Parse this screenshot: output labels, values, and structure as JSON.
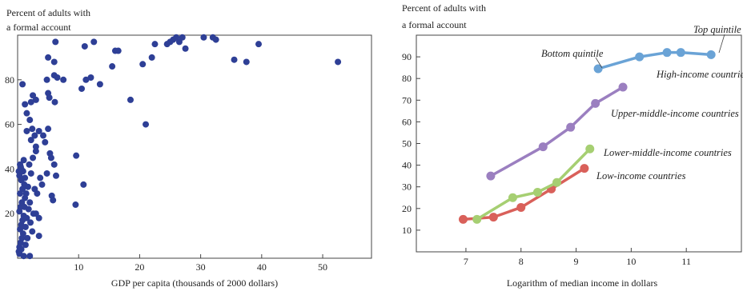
{
  "chart_data": [
    {
      "type": "scatter",
      "ylabel_line1": "Percent of adults with",
      "ylabel_line2": "a formal account",
      "xlabel": "GDP per capita (thousands of 2000 dollars)",
      "xlim": [
        0,
        58
      ],
      "ylim": [
        0,
        100
      ],
      "xticks": [
        10,
        20,
        30,
        40,
        50
      ],
      "yticks": [
        20,
        40,
        60,
        80
      ],
      "grid": false,
      "color": "#2e3f96",
      "points": [
        [
          0.2,
          3
        ],
        [
          0.3,
          5
        ],
        [
          0.5,
          7
        ],
        [
          0.7,
          9
        ],
        [
          0.9,
          11
        ],
        [
          0.4,
          13
        ],
        [
          0.6,
          15
        ],
        [
          0.8,
          17
        ],
        [
          1.0,
          19
        ],
        [
          0.3,
          21
        ],
        [
          0.5,
          23
        ],
        [
          0.7,
          25
        ],
        [
          1.2,
          27
        ],
        [
          0.4,
          29
        ],
        [
          0.8,
          31
        ],
        [
          1.1,
          33
        ],
        [
          0.6,
          35
        ],
        [
          0.3,
          37
        ],
        [
          0.9,
          39
        ],
        [
          0.5,
          41
        ],
        [
          1.3,
          14
        ],
        [
          1.5,
          18
        ],
        [
          1.8,
          22
        ],
        [
          2.0,
          25
        ],
        [
          1.4,
          29
        ],
        [
          1.7,
          32
        ],
        [
          1.2,
          36
        ],
        [
          2.2,
          38
        ],
        [
          1.9,
          42
        ],
        [
          1.0,
          44
        ],
        [
          0.2,
          39
        ],
        [
          0.4,
          42
        ],
        [
          0.6,
          40
        ],
        [
          1.6,
          9
        ],
        [
          2.4,
          12
        ],
        [
          2.1,
          16
        ],
        [
          2.6,
          20
        ],
        [
          1.1,
          23
        ],
        [
          3.5,
          18
        ],
        [
          3.0,
          20
        ],
        [
          2.8,
          31
        ],
        [
          3.2,
          29
        ],
        [
          4.0,
          33
        ],
        [
          3.7,
          36
        ],
        [
          2.5,
          45
        ],
        [
          3.0,
          48
        ],
        [
          2.2,
          53
        ],
        [
          2.8,
          55
        ],
        [
          2.4,
          58
        ],
        [
          3.5,
          57
        ],
        [
          3.0,
          50
        ],
        [
          4.5,
          52
        ],
        [
          4.2,
          55
        ],
        [
          5.0,
          58
        ],
        [
          5.3,
          47
        ],
        [
          6.0,
          42
        ],
        [
          5.5,
          45
        ],
        [
          4.8,
          38
        ],
        [
          5.8,
          26
        ],
        [
          5.6,
          28
        ],
        [
          6.3,
          37
        ],
        [
          2.0,
          62
        ],
        [
          1.5,
          65
        ],
        [
          1.2,
          69
        ],
        [
          2.2,
          70
        ],
        [
          3.0,
          71
        ],
        [
          2.5,
          73
        ],
        [
          5.0,
          74
        ],
        [
          5.2,
          72
        ],
        [
          6.1,
          70
        ],
        [
          1.5,
          57
        ],
        [
          0.8,
          78
        ],
        [
          4.8,
          80
        ],
        [
          6.0,
          82
        ],
        [
          6.5,
          81
        ],
        [
          7.5,
          80
        ],
        [
          5.0,
          90
        ],
        [
          6.0,
          88
        ],
        [
          6.2,
          97
        ],
        [
          3.5,
          10
        ],
        [
          2.0,
          1
        ],
        [
          9.6,
          46
        ],
        [
          9.5,
          24
        ],
        [
          10.8,
          33
        ],
        [
          10.5,
          76
        ],
        [
          11.2,
          80
        ],
        [
          12.0,
          81
        ],
        [
          13.5,
          78
        ],
        [
          11.0,
          95
        ],
        [
          12.5,
          97
        ],
        [
          15.5,
          86
        ],
        [
          16.0,
          93
        ],
        [
          16.5,
          93
        ],
        [
          18.5,
          71
        ],
        [
          20.5,
          87
        ],
        [
          22.0,
          90
        ],
        [
          22.5,
          96
        ],
        [
          21.0,
          60
        ],
        [
          24.5,
          96
        ],
        [
          25.5,
          98
        ],
        [
          25.0,
          97
        ],
        [
          26.0,
          99
        ],
        [
          26.5,
          97
        ],
        [
          27.0,
          99
        ],
        [
          27.5,
          94
        ],
        [
          30.5,
          99
        ],
        [
          32.0,
          99
        ],
        [
          32.5,
          98
        ],
        [
          35.5,
          89
        ],
        [
          37.5,
          88
        ],
        [
          39.5,
          96
        ],
        [
          52.5,
          88
        ],
        [
          1.0,
          1
        ],
        [
          0.3,
          2
        ],
        [
          0.6,
          4
        ],
        [
          1.3,
          6
        ]
      ]
    },
    {
      "type": "line",
      "ylabel_line1": "Percent of adults with",
      "ylabel_line2": "a formal account",
      "xlabel": "Logarithm of median income in dollars",
      "xlim": [
        6.1,
        12.0
      ],
      "ylim": [
        0,
        100
      ],
      "xticks": [
        7,
        8,
        9,
        10,
        11
      ],
      "yticks": [
        10,
        20,
        30,
        40,
        50,
        60,
        70,
        80,
        90
      ],
      "grid": false,
      "series": [
        {
          "name": "Low-income countries",
          "color": "#d9605a",
          "x": [
            6.95,
            7.5,
            8.0,
            8.55,
            9.15
          ],
          "y": [
            15,
            16,
            20.5,
            29,
            38.5
          ]
        },
        {
          "name": "Lower-middle-income countries",
          "color": "#a6cf72",
          "x": [
            7.2,
            7.85,
            8.3,
            8.65,
            9.25
          ],
          "y": [
            15,
            25,
            27.5,
            32,
            47.5
          ]
        },
        {
          "name": "Upper-middle-income countries",
          "color": "#9b7fc0",
          "x": [
            7.45,
            8.4,
            8.9,
            9.35,
            9.85
          ],
          "y": [
            35,
            48.5,
            57.5,
            68.5,
            76
          ]
        },
        {
          "name": "High-income countries",
          "color": "#6aa3d6",
          "x": [
            9.4,
            10.15,
            10.65,
            10.9,
            11.45
          ],
          "y": [
            84.5,
            90,
            92,
            92,
            91
          ]
        }
      ],
      "annotations": {
        "bottom_quintile": "Bottom quintile",
        "top_quintile": "Top quintile"
      }
    }
  ]
}
